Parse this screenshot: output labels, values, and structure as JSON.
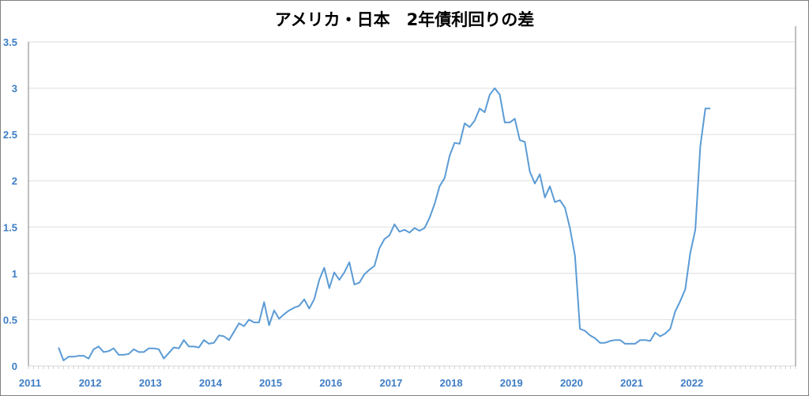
{
  "chart_data": {
    "type": "line",
    "title": "アメリカ・日本　2年債利回りの差",
    "xlabel": "",
    "ylabel": "",
    "ylim": [
      0,
      3.5
    ],
    "yticks": [
      "0",
      "0.5",
      "1",
      "1.5",
      "2",
      "2.5",
      "3",
      "3.5"
    ],
    "xticks": [
      "2011",
      "2012",
      "2013",
      "2014",
      "2015",
      "2016",
      "2017",
      "2018",
      "2019",
      "2020",
      "2021",
      "2022"
    ],
    "xlim": [
      "2011-01",
      "2023-10"
    ],
    "grid": true,
    "start": "2011-07",
    "frequency": "monthly",
    "series": [
      {
        "color": "#5b9bd5",
        "values": [
          0.2,
          0.06,
          0.1,
          0.1,
          0.11,
          0.11,
          0.08,
          0.18,
          0.21,
          0.15,
          0.16,
          0.19,
          0.12,
          0.12,
          0.13,
          0.18,
          0.15,
          0.15,
          0.19,
          0.19,
          0.18,
          0.08,
          0.14,
          0.2,
          0.19,
          0.28,
          0.21,
          0.21,
          0.2,
          0.28,
          0.24,
          0.25,
          0.33,
          0.32,
          0.28,
          0.37,
          0.46,
          0.43,
          0.5,
          0.47,
          0.47,
          0.69,
          0.44,
          0.6,
          0.51,
          0.56,
          0.6,
          0.63,
          0.65,
          0.72,
          0.62,
          0.72,
          0.93,
          1.06,
          0.84,
          1.01,
          0.93,
          1.01,
          1.12,
          0.88,
          0.9,
          0.99,
          1.04,
          1.08,
          1.27,
          1.37,
          1.41,
          1.53,
          1.45,
          1.47,
          1.44,
          1.49,
          1.46,
          1.49,
          1.6,
          1.75,
          1.94,
          2.03,
          2.27,
          2.41,
          2.4,
          2.62,
          2.58,
          2.65,
          2.78,
          2.74,
          2.93,
          3.0,
          2.93,
          2.63,
          2.63,
          2.67,
          2.44,
          2.42,
          2.1,
          1.97,
          2.07,
          1.82,
          1.94,
          1.77,
          1.79,
          1.71,
          1.49,
          1.19,
          0.4,
          0.38,
          0.33,
          0.3,
          0.25,
          0.25,
          0.27,
          0.28,
          0.28,
          0.24,
          0.24,
          0.24,
          0.28,
          0.28,
          0.27,
          0.36,
          0.32,
          0.35,
          0.4,
          0.59,
          0.7,
          0.83,
          1.22,
          1.47,
          2.37,
          2.78,
          2.78
        ]
      }
    ],
    "tick_color": "#3d7dc4"
  }
}
